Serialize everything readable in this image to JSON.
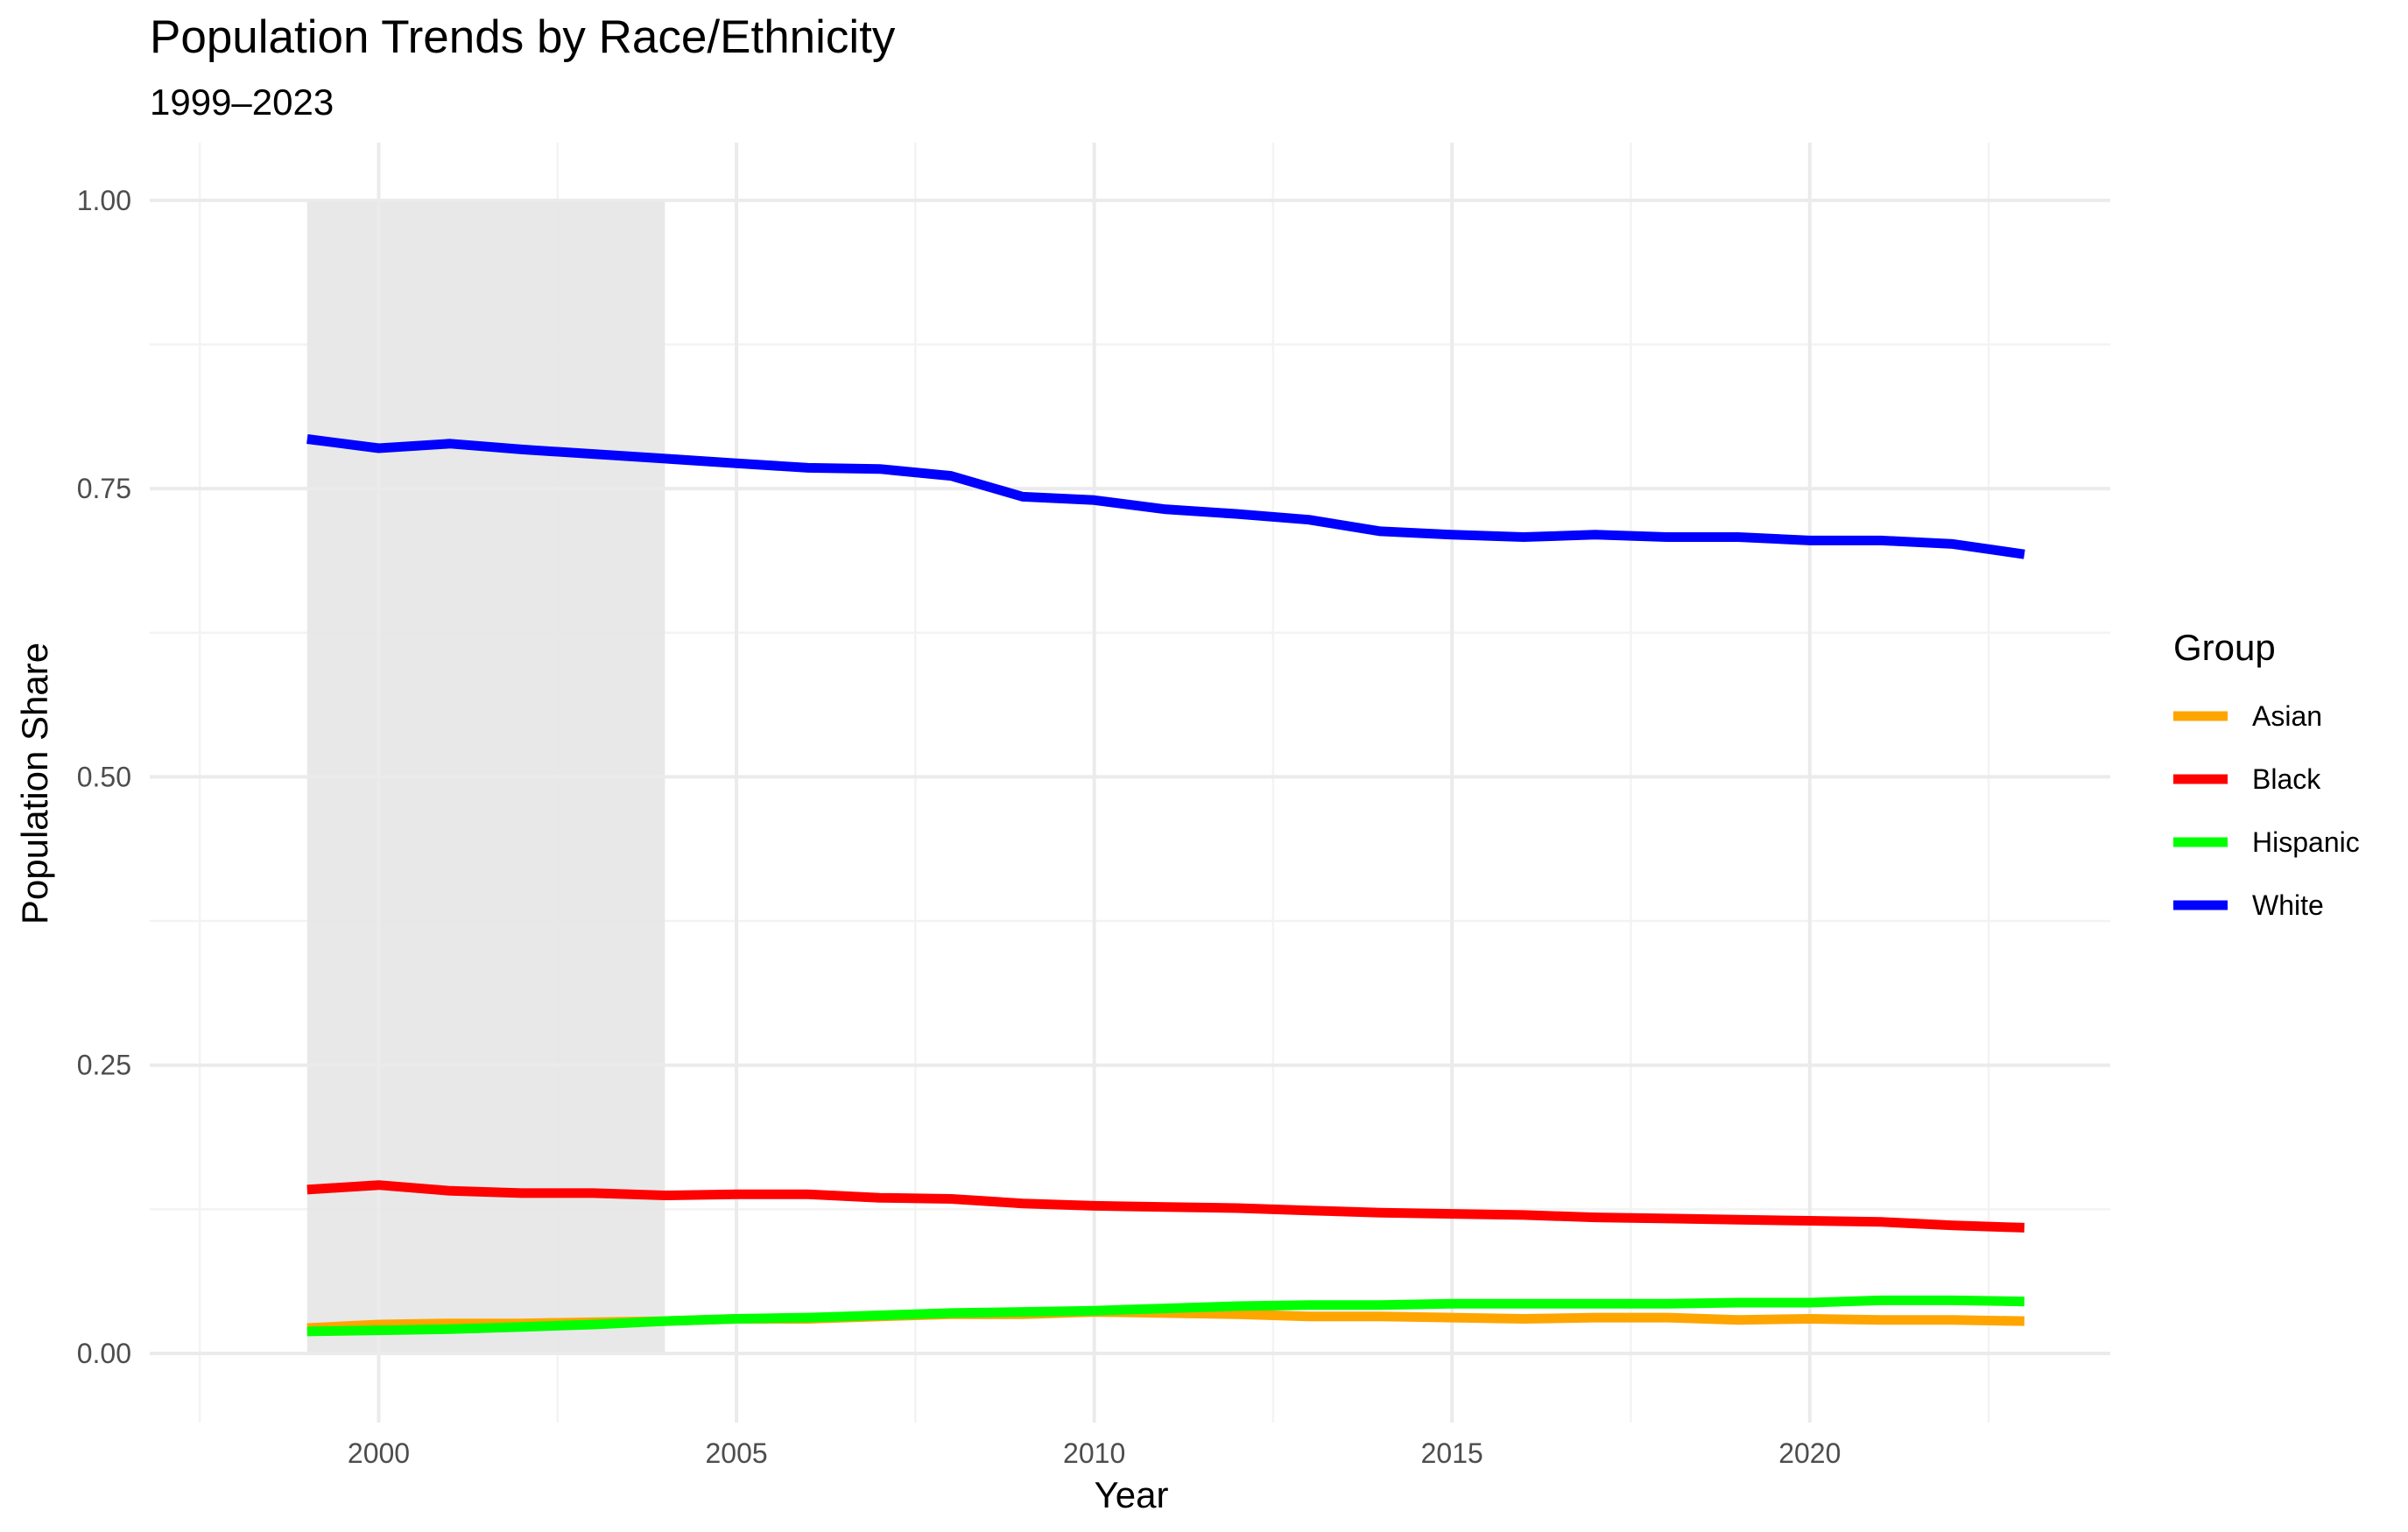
{
  "chart_data": {
    "type": "line",
    "title": "Population Trends by Race/Ethnicity",
    "subtitle": "1999–2023",
    "xlabel": "Year",
    "ylabel": "Population Share",
    "xlim": [
      1996.8,
      2024.2
    ],
    "ylim": [
      -0.06,
      1.05
    ],
    "x_ticks": [
      2000,
      2005,
      2010,
      2015,
      2020
    ],
    "y_ticks": [
      0.0,
      0.25,
      0.5,
      0.75,
      1.0
    ],
    "x_tick_labels": [
      "2000",
      "2005",
      "2010",
      "2015",
      "2020"
    ],
    "y_tick_labels": [
      "0.00",
      "0.25",
      "0.50",
      "0.75",
      "1.00"
    ],
    "grid": true,
    "legend": {
      "title": "Group",
      "position": "right"
    },
    "shaded_region": {
      "x": [
        1999,
        2004
      ],
      "y": [
        0,
        1
      ],
      "color": "#e5e5e5"
    },
    "x": [
      1999,
      2000,
      2001,
      2002,
      2003,
      2004,
      2005,
      2006,
      2007,
      2008,
      2009,
      2010,
      2011,
      2012,
      2013,
      2014,
      2015,
      2016,
      2017,
      2018,
      2019,
      2020,
      2021,
      2022,
      2023
    ],
    "series": [
      {
        "name": "Asian",
        "color": "#FFA500",
        "values": [
          0.022,
          0.025,
          0.026,
          0.026,
          0.027,
          0.028,
          0.03,
          0.03,
          0.032,
          0.034,
          0.034,
          0.036,
          0.035,
          0.034,
          0.032,
          0.032,
          0.031,
          0.03,
          0.031,
          0.031,
          0.029,
          0.03,
          0.029,
          0.029,
          0.028
        ]
      },
      {
        "name": "Black",
        "color": "#FF0000",
        "values": [
          0.142,
          0.146,
          0.141,
          0.139,
          0.139,
          0.137,
          0.138,
          0.138,
          0.135,
          0.134,
          0.13,
          0.128,
          0.127,
          0.126,
          0.124,
          0.122,
          0.121,
          0.12,
          0.118,
          0.117,
          0.116,
          0.115,
          0.114,
          0.111,
          0.109
        ]
      },
      {
        "name": "Hispanic",
        "color": "#00FF00",
        "values": [
          0.019,
          0.02,
          0.021,
          0.023,
          0.025,
          0.028,
          0.03,
          0.031,
          0.033,
          0.035,
          0.036,
          0.037,
          0.039,
          0.041,
          0.042,
          0.042,
          0.043,
          0.043,
          0.043,
          0.043,
          0.044,
          0.044,
          0.046,
          0.046,
          0.045
        ]
      },
      {
        "name": "White",
        "color": "#0000FF",
        "values": [
          0.793,
          0.785,
          0.789,
          0.784,
          0.78,
          0.776,
          0.772,
          0.768,
          0.767,
          0.761,
          0.743,
          0.74,
          0.732,
          0.728,
          0.723,
          0.713,
          0.71,
          0.708,
          0.71,
          0.708,
          0.708,
          0.705,
          0.705,
          0.702,
          0.693
        ]
      }
    ]
  }
}
